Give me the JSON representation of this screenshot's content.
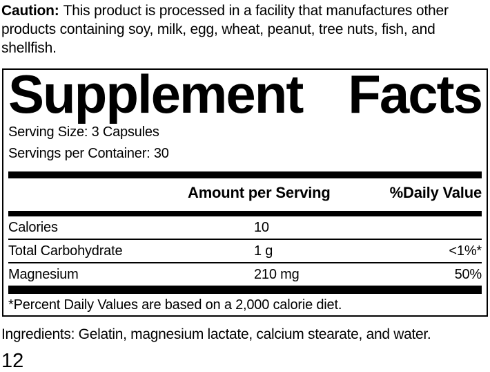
{
  "caution": {
    "label": "Caution:",
    "lines": [
      "This product is processed in a facility that manufactures other",
      "products containing soy, milk, egg, wheat, peanut, tree nuts, fish, and",
      "shellfish."
    ]
  },
  "supplement_facts": {
    "title": {
      "left": "Supplement",
      "right": "Facts"
    },
    "serving_size": "Serving Size: 3 Capsules",
    "servings_per_container": "Servings per Container: 30",
    "columns": {
      "amount": "Amount per Serving",
      "daily_value": "%Daily Value"
    },
    "rows": [
      {
        "label": "Calories",
        "amount": "10",
        "daily_value": ""
      },
      {
        "label": "Total Carbohydrate",
        "amount": "1 g",
        "daily_value": "<1%*"
      },
      {
        "label": "Magnesium",
        "amount": "210 mg",
        "daily_value": "50%"
      }
    ],
    "footnote": "*Percent Daily Values are based on a 2,000 calorie diet."
  },
  "ingredients": "Ingredients: Gelatin, magnesium lactate, calcium stearate, and water.",
  "page_number": "12",
  "colors": {
    "text": "#000000",
    "background": "#ffffff",
    "border": "#000000"
  }
}
